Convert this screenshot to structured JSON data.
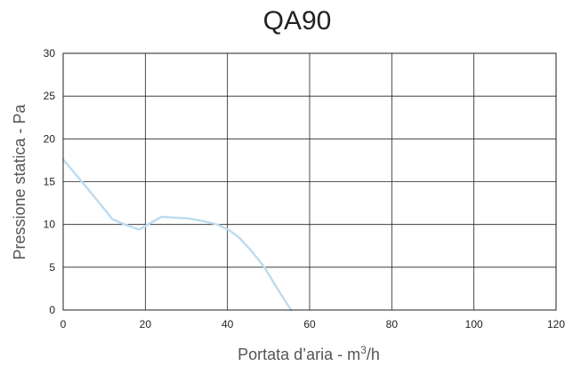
{
  "chart_data": {
    "type": "line",
    "title": "QA90",
    "xlabel_main": "Portata d’aria - m",
    "xlabel_sup": "3",
    "xlabel_end": "/h",
    "ylabel": "Pressione statica - Pa",
    "xlim": [
      0,
      120
    ],
    "ylim": [
      0,
      30
    ],
    "x_ticks": [
      0,
      20,
      40,
      60,
      80,
      100,
      120
    ],
    "y_ticks": [
      0,
      5,
      10,
      15,
      20,
      25,
      30
    ],
    "grid": {
      "vertical": "major",
      "horizontal": "major"
    },
    "series": [
      {
        "color": "#bfdcef",
        "points": [
          [
            0,
            17.6
          ],
          [
            4,
            15.3
          ],
          [
            8,
            13.0
          ],
          [
            12,
            10.6
          ],
          [
            15,
            10.0
          ],
          [
            18.5,
            9.4
          ],
          [
            21,
            10.1
          ],
          [
            24,
            10.9
          ],
          [
            27,
            10.8
          ],
          [
            30.5,
            10.7
          ],
          [
            34,
            10.4
          ],
          [
            37.5,
            10.0
          ],
          [
            40.5,
            9.3
          ],
          [
            43,
            8.4
          ],
          [
            46,
            6.8
          ],
          [
            49,
            5.0
          ],
          [
            52,
            2.6
          ],
          [
            55.5,
            0
          ]
        ]
      }
    ]
  }
}
